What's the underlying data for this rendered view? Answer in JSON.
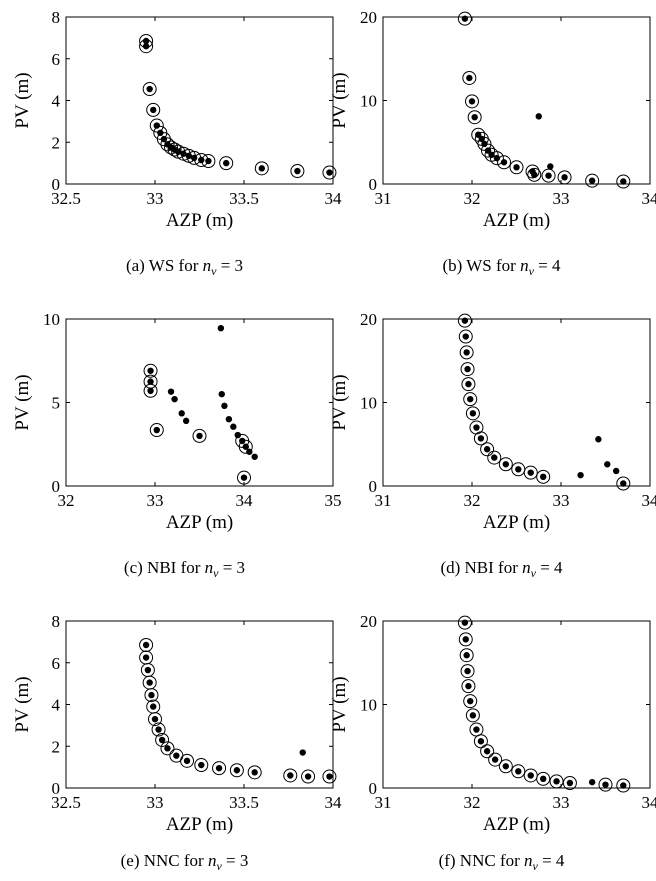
{
  "chart_data": [
    {
      "type": "scatter",
      "caption": "(a) WS for n_v = 3",
      "caption_parts": {
        "pre": "(a) WS for ",
        "var": "n",
        "sub": "v",
        "post": " = 3"
      },
      "xlabel": "AZP (m)",
      "ylabel": "PV (m)",
      "xlim": [
        32.5,
        34
      ],
      "ylim": [
        0,
        8
      ],
      "xticks": [
        32.5,
        33,
        33.5,
        34
      ],
      "xtick_labels": [
        "32.5",
        "33",
        "33.5",
        "34"
      ],
      "yticks": [
        0,
        2,
        4,
        6,
        8
      ],
      "ytick_labels": [
        "0",
        "2",
        "4",
        "6",
        "8"
      ],
      "grid": false,
      "dots": [
        [
          32.95,
          6.85
        ],
        [
          32.95,
          6.6
        ],
        [
          32.97,
          4.55
        ],
        [
          32.99,
          3.55
        ],
        [
          33.01,
          2.8
        ],
        [
          33.03,
          2.45
        ],
        [
          33.05,
          2.15
        ],
        [
          33.07,
          1.9
        ],
        [
          33.09,
          1.75
        ],
        [
          33.11,
          1.65
        ],
        [
          33.13,
          1.55
        ],
        [
          33.16,
          1.45
        ],
        [
          33.19,
          1.35
        ],
        [
          33.22,
          1.25
        ],
        [
          33.26,
          1.15
        ],
        [
          33.3,
          1.1
        ],
        [
          33.4,
          1.0
        ],
        [
          33.6,
          0.75
        ],
        [
          33.8,
          0.62
        ],
        [
          33.98,
          0.55
        ]
      ],
      "circles": [
        [
          32.95,
          6.85
        ],
        [
          32.95,
          6.6
        ],
        [
          32.97,
          4.55
        ],
        [
          32.99,
          3.55
        ],
        [
          33.01,
          2.8
        ],
        [
          33.03,
          2.45
        ],
        [
          33.05,
          2.15
        ],
        [
          33.07,
          1.9
        ],
        [
          33.09,
          1.75
        ],
        [
          33.11,
          1.65
        ],
        [
          33.13,
          1.55
        ],
        [
          33.16,
          1.45
        ],
        [
          33.19,
          1.35
        ],
        [
          33.22,
          1.25
        ],
        [
          33.26,
          1.15
        ],
        [
          33.3,
          1.1
        ],
        [
          33.4,
          1.0
        ],
        [
          33.6,
          0.75
        ],
        [
          33.8,
          0.62
        ],
        [
          33.98,
          0.55
        ]
      ]
    },
    {
      "type": "scatter",
      "caption": "(b) WS for n_v = 4",
      "caption_parts": {
        "pre": "(b) WS for ",
        "var": "n",
        "sub": "v",
        "post": " = 4"
      },
      "xlabel": "AZP (m)",
      "ylabel": "PV (m)",
      "xlim": [
        31,
        34
      ],
      "ylim": [
        0,
        20
      ],
      "xticks": [
        31,
        32,
        33,
        34
      ],
      "xtick_labels": [
        "31",
        "32",
        "33",
        "34"
      ],
      "yticks": [
        0,
        10,
        20
      ],
      "ytick_labels": [
        "0",
        "10",
        "20"
      ],
      "grid": false,
      "dots": [
        [
          31.92,
          19.8
        ],
        [
          31.97,
          12.7
        ],
        [
          32.0,
          9.9
        ],
        [
          32.03,
          8.0
        ],
        [
          32.07,
          5.9
        ],
        [
          32.11,
          5.4
        ],
        [
          32.14,
          4.8
        ],
        [
          32.18,
          4.0
        ],
        [
          32.22,
          3.5
        ],
        [
          32.28,
          3.1
        ],
        [
          32.36,
          2.6
        ],
        [
          32.5,
          2.0
        ],
        [
          32.68,
          1.5
        ],
        [
          32.7,
          1.1
        ],
        [
          32.75,
          8.1
        ],
        [
          32.88,
          2.1
        ],
        [
          32.86,
          1.0
        ],
        [
          33.04,
          0.8
        ],
        [
          33.35,
          0.4
        ],
        [
          33.7,
          0.3
        ]
      ],
      "circles": [
        [
          31.92,
          19.8
        ],
        [
          31.97,
          12.7
        ],
        [
          32.0,
          9.9
        ],
        [
          32.03,
          8.0
        ],
        [
          32.07,
          5.9
        ],
        [
          32.11,
          5.4
        ],
        [
          32.14,
          4.8
        ],
        [
          32.18,
          4.0
        ],
        [
          32.22,
          3.5
        ],
        [
          32.28,
          3.1
        ],
        [
          32.36,
          2.6
        ],
        [
          32.5,
          2.0
        ],
        [
          32.68,
          1.5
        ],
        [
          32.7,
          1.1
        ],
        [
          32.86,
          1.0
        ],
        [
          33.04,
          0.8
        ],
        [
          33.35,
          0.4
        ],
        [
          33.7,
          0.3
        ]
      ]
    },
    {
      "type": "scatter",
      "caption": "(c) NBI for n_v = 3",
      "caption_parts": {
        "pre": "(c) NBI for ",
        "var": "n",
        "sub": "v",
        "post": " = 3"
      },
      "xlabel": "AZP (m)",
      "ylabel": "PV (m)",
      "xlim": [
        32,
        35
      ],
      "ylim": [
        0,
        10
      ],
      "xticks": [
        32,
        33,
        34,
        35
      ],
      "xtick_labels": [
        "32",
        "33",
        "34",
        "35"
      ],
      "yticks": [
        0,
        5,
        10
      ],
      "ytick_labels": [
        "0",
        "5",
        "10"
      ],
      "grid": false,
      "dots": [
        [
          32.95,
          6.9
        ],
        [
          32.95,
          6.25
        ],
        [
          32.95,
          5.7
        ],
        [
          33.02,
          3.35
        ],
        [
          33.18,
          5.65
        ],
        [
          33.22,
          5.2
        ],
        [
          33.3,
          4.35
        ],
        [
          33.35,
          3.9
        ],
        [
          33.5,
          3.0
        ],
        [
          33.74,
          9.45
        ],
        [
          33.75,
          5.5
        ],
        [
          33.78,
          4.8
        ],
        [
          33.83,
          4.0
        ],
        [
          33.88,
          3.55
        ],
        [
          33.93,
          3.05
        ],
        [
          33.98,
          2.7
        ],
        [
          34.02,
          2.35
        ],
        [
          34.06,
          2.05
        ],
        [
          34.12,
          1.75
        ],
        [
          34.0,
          0.5
        ]
      ],
      "circles": [
        [
          32.95,
          6.9
        ],
        [
          32.95,
          6.25
        ],
        [
          32.95,
          5.7
        ],
        [
          33.02,
          3.35
        ],
        [
          33.5,
          3.0
        ],
        [
          33.98,
          2.7
        ],
        [
          34.02,
          2.35
        ],
        [
          34.0,
          0.5
        ]
      ]
    },
    {
      "type": "scatter",
      "caption": "(d) NBI for n_v = 4",
      "caption_parts": {
        "pre": "(d) NBI for ",
        "var": "n",
        "sub": "v",
        "post": " = 4"
      },
      "xlabel": "AZP (m)",
      "ylabel": "PV (m)",
      "xlim": [
        31,
        34
      ],
      "ylim": [
        0,
        20
      ],
      "xticks": [
        31,
        32,
        33,
        34
      ],
      "xtick_labels": [
        "31",
        "32",
        "33",
        "34"
      ],
      "yticks": [
        0,
        10,
        20
      ],
      "ytick_labels": [
        "0",
        "10",
        "20"
      ],
      "grid": false,
      "dots": [
        [
          31.92,
          19.8
        ],
        [
          31.93,
          17.9
        ],
        [
          31.94,
          16.0
        ],
        [
          31.95,
          14.0
        ],
        [
          31.96,
          12.2
        ],
        [
          31.98,
          10.4
        ],
        [
          32.01,
          8.7
        ],
        [
          32.05,
          7.0
        ],
        [
          32.1,
          5.7
        ],
        [
          32.17,
          4.4
        ],
        [
          32.25,
          3.4
        ],
        [
          32.38,
          2.6
        ],
        [
          32.52,
          2.0
        ],
        [
          32.66,
          1.6
        ],
        [
          32.8,
          1.1
        ],
        [
          33.22,
          1.3
        ],
        [
          33.42,
          5.6
        ],
        [
          33.52,
          2.6
        ],
        [
          33.62,
          1.8
        ],
        [
          33.7,
          0.3
        ]
      ],
      "circles": [
        [
          31.92,
          19.8
        ],
        [
          31.93,
          17.9
        ],
        [
          31.94,
          16.0
        ],
        [
          31.95,
          14.0
        ],
        [
          31.96,
          12.2
        ],
        [
          31.98,
          10.4
        ],
        [
          32.01,
          8.7
        ],
        [
          32.05,
          7.0
        ],
        [
          32.1,
          5.7
        ],
        [
          32.17,
          4.4
        ],
        [
          32.25,
          3.4
        ],
        [
          32.38,
          2.6
        ],
        [
          32.52,
          2.0
        ],
        [
          32.66,
          1.6
        ],
        [
          32.8,
          1.1
        ],
        [
          33.7,
          0.3
        ]
      ]
    },
    {
      "type": "scatter",
      "caption": "(e) NNC for n_v = 3",
      "caption_parts": {
        "pre": "(e) NNC for ",
        "var": "n",
        "sub": "v",
        "post": " = 3"
      },
      "xlabel": "AZP (m)",
      "ylabel": "PV (m)",
      "xlim": [
        32.5,
        34
      ],
      "ylim": [
        0,
        8
      ],
      "xticks": [
        32.5,
        33,
        33.5,
        34
      ],
      "xtick_labels": [
        "32.5",
        "33",
        "33.5",
        "34"
      ],
      "yticks": [
        0,
        2,
        4,
        6,
        8
      ],
      "ytick_labels": [
        "0",
        "2",
        "4",
        "6",
        "8"
      ],
      "grid": false,
      "dots": [
        [
          32.95,
          6.85
        ],
        [
          32.95,
          6.25
        ],
        [
          32.96,
          5.65
        ],
        [
          32.97,
          5.05
        ],
        [
          32.98,
          4.45
        ],
        [
          32.99,
          3.9
        ],
        [
          33.0,
          3.3
        ],
        [
          33.02,
          2.8
        ],
        [
          33.04,
          2.3
        ],
        [
          33.07,
          1.9
        ],
        [
          33.12,
          1.55
        ],
        [
          33.18,
          1.3
        ],
        [
          33.26,
          1.1
        ],
        [
          33.36,
          0.95
        ],
        [
          33.46,
          0.85
        ],
        [
          33.56,
          0.75
        ],
        [
          33.76,
          0.6
        ],
        [
          33.86,
          0.55
        ],
        [
          33.98,
          0.55
        ],
        [
          33.83,
          1.7
        ]
      ],
      "circles": [
        [
          32.95,
          6.85
        ],
        [
          32.95,
          6.25
        ],
        [
          32.96,
          5.65
        ],
        [
          32.97,
          5.05
        ],
        [
          32.98,
          4.45
        ],
        [
          32.99,
          3.9
        ],
        [
          33.0,
          3.3
        ],
        [
          33.02,
          2.8
        ],
        [
          33.04,
          2.3
        ],
        [
          33.07,
          1.9
        ],
        [
          33.12,
          1.55
        ],
        [
          33.18,
          1.3
        ],
        [
          33.26,
          1.1
        ],
        [
          33.36,
          0.95
        ],
        [
          33.46,
          0.85
        ],
        [
          33.56,
          0.75
        ],
        [
          33.76,
          0.6
        ],
        [
          33.86,
          0.55
        ],
        [
          33.98,
          0.55
        ]
      ]
    },
    {
      "type": "scatter",
      "caption": "(f) NNC for n_v = 4",
      "caption_parts": {
        "pre": "(f) NNC for ",
        "var": "n",
        "sub": "v",
        "post": " = 4"
      },
      "xlabel": "AZP (m)",
      "ylabel": "PV (m)",
      "xlim": [
        31,
        34
      ],
      "ylim": [
        0,
        20
      ],
      "xticks": [
        31,
        32,
        33,
        34
      ],
      "xtick_labels": [
        "31",
        "32",
        "33",
        "34"
      ],
      "yticks": [
        0,
        10,
        20
      ],
      "ytick_labels": [
        "0",
        "10",
        "20"
      ],
      "grid": false,
      "dots": [
        [
          31.92,
          19.8
        ],
        [
          31.93,
          17.8
        ],
        [
          31.94,
          15.9
        ],
        [
          31.95,
          14.0
        ],
        [
          31.96,
          12.2
        ],
        [
          31.98,
          10.4
        ],
        [
          32.01,
          8.7
        ],
        [
          32.05,
          7.0
        ],
        [
          32.1,
          5.6
        ],
        [
          32.17,
          4.4
        ],
        [
          32.26,
          3.4
        ],
        [
          32.38,
          2.6
        ],
        [
          32.52,
          2.0
        ],
        [
          32.66,
          1.5
        ],
        [
          32.8,
          1.1
        ],
        [
          32.95,
          0.8
        ],
        [
          33.1,
          0.6
        ],
        [
          33.35,
          0.7
        ],
        [
          33.5,
          0.4
        ],
        [
          33.7,
          0.3
        ]
      ],
      "circles": [
        [
          31.92,
          19.8
        ],
        [
          31.93,
          17.8
        ],
        [
          31.94,
          15.9
        ],
        [
          31.95,
          14.0
        ],
        [
          31.96,
          12.2
        ],
        [
          31.98,
          10.4
        ],
        [
          32.01,
          8.7
        ],
        [
          32.05,
          7.0
        ],
        [
          32.1,
          5.6
        ],
        [
          32.17,
          4.4
        ],
        [
          32.26,
          3.4
        ],
        [
          32.38,
          2.6
        ],
        [
          32.52,
          2.0
        ],
        [
          32.66,
          1.5
        ],
        [
          32.8,
          1.1
        ],
        [
          32.95,
          0.8
        ],
        [
          33.1,
          0.6
        ],
        [
          33.5,
          0.4
        ],
        [
          33.7,
          0.3
        ]
      ]
    }
  ]
}
